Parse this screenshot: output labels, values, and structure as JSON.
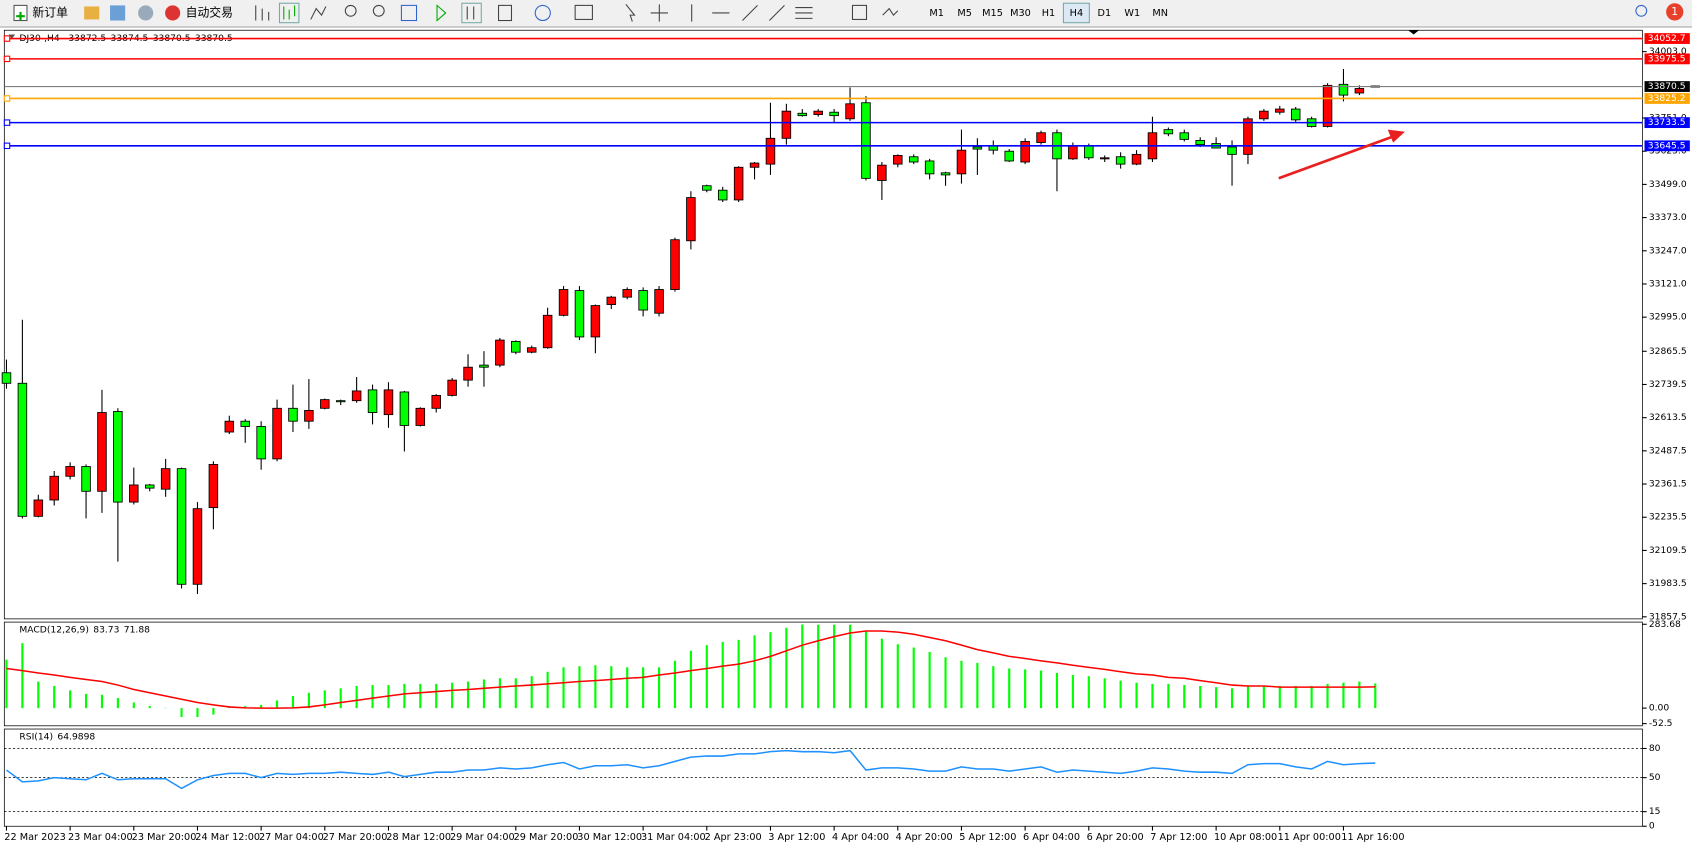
{
  "toolbar": {
    "new_order": "新订单",
    "auto_trading": "自动交易",
    "timeframes": [
      "M1",
      "M5",
      "M15",
      "M30",
      "H1",
      "H4",
      "D1",
      "W1",
      "MN"
    ],
    "active_timeframe": "H4",
    "notifications": 1
  },
  "chart_data": [
    {
      "type": "candlestick",
      "title": "DJ30-,H4",
      "categories": [
        "22 Mar 2023",
        null,
        null,
        null,
        "23 Mar 04:00",
        null,
        null,
        null,
        "23 Mar 20:00",
        null,
        null,
        null,
        "24 Mar 12:00",
        null,
        null,
        null,
        "27 Mar 04:00",
        null,
        null,
        null,
        "27 Mar 20:00",
        null,
        null,
        null,
        "28 Mar 12:00",
        null,
        null,
        null,
        "29 Mar 04:00",
        null,
        null,
        null,
        "29 Mar 20:00",
        null,
        null,
        null,
        "30 Mar 12:00",
        null,
        null,
        null,
        "31 Mar 04:00",
        null,
        null,
        null,
        "2 Apr 23:00",
        null,
        null,
        null,
        "3 Apr 12:00",
        null,
        null,
        null,
        "4 Apr 04:00",
        null,
        null,
        null,
        "4 Apr 20:00",
        null,
        null,
        null,
        "5 Apr 12:00",
        null,
        null,
        null,
        "6 Apr 04:00",
        null,
        null,
        null,
        "6 Apr 20:00",
        null,
        null,
        null,
        "7 Apr 12:00",
        null,
        null,
        null,
        "10 Apr 08:00",
        null,
        null,
        null,
        "11 Apr 00:00",
        null,
        null,
        null,
        "11 Apr 16:00",
        null,
        null
      ],
      "open": [
        32784,
        32744,
        32239,
        32301,
        32391,
        32428,
        32334,
        32637,
        32293,
        32358,
        32342,
        32420,
        31981,
        32272,
        32559,
        32600,
        32580,
        32457,
        32649,
        32600,
        32649,
        32678,
        32678,
        32719,
        32625,
        32711,
        32584,
        32649,
        32698,
        32756,
        32813,
        32813,
        32903,
        32862,
        32879,
        33002,
        33096,
        32920,
        33043,
        33071,
        33096,
        33010,
        33100,
        33285,
        33494,
        33477,
        33440,
        33564,
        33576,
        33674,
        33769,
        33764,
        33773,
        33748,
        33809,
        33514,
        33576,
        33604,
        33588,
        33543,
        33539,
        33641,
        33646,
        33625,
        33584,
        33658,
        33695,
        33596,
        33646,
        33596,
        33604,
        33576,
        33596,
        33707,
        33695,
        33666,
        33654,
        33641,
        33613,
        33748,
        33773,
        33785,
        33748,
        33719,
        33879,
        33846,
        33872.5
      ],
      "high": [
        32834,
        32985,
        32321,
        32411,
        32444,
        32436,
        32719,
        32649,
        32424,
        32362,
        32457,
        32424,
        32293,
        32448,
        32621,
        32608,
        32600,
        32682,
        32739,
        32760,
        32686,
        32682,
        32768,
        32739,
        32748,
        32715,
        32653,
        32703,
        32764,
        32854,
        32866,
        32916,
        32907,
        32887,
        33031,
        33113,
        33113,
        33043,
        33076,
        33108,
        33108,
        33113,
        33297,
        33473,
        33498,
        33490,
        33568,
        33584,
        33809,
        33805,
        33785,
        33785,
        33785,
        33867,
        33834,
        33584,
        33613,
        33613,
        33596,
        33547,
        33707,
        33674,
        33666,
        33633,
        33674,
        33703,
        33707,
        33658,
        33654,
        33609,
        33621,
        33629,
        33756,
        33715,
        33707,
        33678,
        33678,
        33666,
        33756,
        33785,
        33797,
        33793,
        33756,
        33883,
        33937,
        33875,
        33874.5
      ],
      "low": [
        32723,
        32231,
        32235,
        32280,
        32379,
        32231,
        32252,
        32067,
        32284,
        32334,
        32313,
        31965,
        31944,
        32190,
        32551,
        32518,
        32416,
        32448,
        32559,
        32571,
        32645,
        32661,
        32670,
        32588,
        32575,
        32485,
        32580,
        32633,
        32694,
        32731,
        32731,
        32805,
        32854,
        32858,
        32875,
        32998,
        32908,
        32858,
        33026,
        33063,
        32998,
        32998,
        33092,
        33252,
        33469,
        33432,
        33432,
        33518,
        33535,
        33650,
        33756,
        33756,
        33736,
        33740,
        33514,
        33440,
        33564,
        33576,
        33518,
        33494,
        33502,
        33535,
        33613,
        33584,
        33576,
        33650,
        33473,
        33592,
        33592,
        33584,
        33559,
        33572,
        33584,
        33682,
        33662,
        33641,
        33637,
        33494,
        33576,
        33740,
        33764,
        33736,
        33715,
        33715,
        33814,
        33838,
        33870.5
      ],
      "close": [
        32744,
        32239,
        32301,
        32391,
        32428,
        32334,
        32633,
        32293,
        32358,
        32346,
        32420,
        31981,
        32268,
        32436,
        32600,
        32580,
        32457,
        32649,
        32600,
        32641,
        32682,
        32674,
        32715,
        32633,
        32719,
        32584,
        32649,
        32698,
        32756,
        32805,
        32805,
        32908,
        32862,
        32879,
        33002,
        33100,
        32920,
        33039,
        33071,
        33100,
        33022,
        33100,
        33289,
        33449,
        33477,
        33440,
        33564,
        33580,
        33674,
        33777,
        33760,
        33777,
        33760,
        33805,
        33522,
        33572,
        33609,
        33584,
        33539,
        33535,
        33629,
        33633,
        33629,
        33588,
        33662,
        33695,
        33596,
        33646,
        33600,
        33600,
        33576,
        33613,
        33695,
        33691,
        33670,
        33650,
        33637,
        33613,
        33748,
        33777,
        33785,
        33744,
        33719,
        33875,
        33838,
        33863,
        33870.5
      ],
      "up_color": "#ff0000",
      "down_color": "#00ff00",
      "bid_color": "#808080",
      "levels": [
        {
          "value": 34052.7,
          "color": "#ff0000"
        },
        {
          "value": 33975.5,
          "color": "#ff0000"
        },
        {
          "value": 33825.2,
          "color": "#ffa500"
        },
        {
          "value": 33733.5,
          "color": "#0000ff"
        },
        {
          "value": 33645.5,
          "color": "#0000ff"
        }
      ],
      "ylim": [
        31849.7,
        34076
      ],
      "yticks": [
        31857.5,
        31983.5,
        32109.5,
        32235.5,
        32361.5,
        32487.5,
        32613.5,
        32739.5,
        32865.5,
        {
          "value": 32995,
          "label": "32995.0"
        },
        {
          "value": 33121,
          "label": "33121.0"
        },
        {
          "value": 33247,
          "label": "33247.0"
        },
        {
          "value": 33373,
          "label": "33373.0"
        },
        {
          "value": 33499,
          "label": "33499.0"
        },
        {
          "value": 33625,
          "label": "33625.0"
        },
        {
          "value": 33751,
          "label": "33751.0"
        },
        {
          "value": 34003,
          "label": "34003.0"
        }
      ]
    },
    {
      "type": "macd",
      "title": "MACD(12,26,9)",
      "histogram": [
        164,
        220,
        90,
        75,
        60,
        48,
        45,
        34,
        19,
        7,
        1,
        -30,
        -30,
        -22,
        4,
        7,
        11,
        26,
        41,
        52,
        60,
        67,
        75,
        78,
        78,
        82,
        82,
        82,
        86,
        90,
        97,
        101,
        101,
        108,
        123,
        138,
        142,
        145,
        142,
        138,
        138,
        138,
        160,
        194,
        213,
        224,
        231,
        246,
        257,
        272,
        283,
        282,
        282,
        282,
        261,
        235,
        216,
        205,
        190,
        172,
        160,
        153,
        142,
        134,
        131,
        127,
        119,
        112,
        108,
        101,
        93,
        86,
        82,
        82,
        78,
        75,
        71,
        67,
        75,
        75,
        75,
        75,
        75,
        82,
        86,
        90,
        83.73
      ],
      "signal": [
        134,
        127,
        119,
        112,
        104,
        97,
        90,
        78,
        63,
        52,
        41,
        30,
        19,
        11,
        4,
        1,
        0,
        0,
        1,
        4,
        11,
        19,
        26,
        34,
        41,
        48,
        52,
        56,
        60,
        63,
        67,
        71,
        75,
        78,
        82,
        86,
        90,
        93,
        97,
        101,
        104,
        112,
        119,
        127,
        134,
        142,
        149,
        160,
        175,
        194,
        213,
        228,
        242,
        254,
        261,
        261,
        257,
        250,
        239,
        228,
        213,
        198,
        187,
        175,
        168,
        160,
        153,
        145,
        138,
        131,
        123,
        116,
        112,
        104,
        101,
        93,
        86,
        78,
        75,
        75,
        71,
        71,
        71,
        71,
        71,
        71,
        71.88
      ],
      "histogram_color": "#00ff00",
      "signal_color": "#ff0000",
      "ylim": [
        -52.5,
        283.68
      ],
      "yticks": [
        -52.5,
        {
          "value": 0,
          "label": "0.00"
        },
        283.68
      ]
    },
    {
      "type": "rsi",
      "title": "RSI(14)",
      "values": [
        57.8,
        45.6,
        46.7,
        50,
        48.9,
        47.8,
        54.4,
        47.8,
        48.9,
        48.9,
        48.9,
        38.9,
        47.8,
        52.2,
        54.4,
        54.4,
        50,
        54.4,
        53.3,
        54.4,
        54.4,
        55.6,
        54.4,
        53.3,
        55.6,
        51.1,
        53.3,
        55.6,
        55.6,
        57.8,
        57.8,
        60,
        58.9,
        60,
        63.3,
        65.6,
        58.9,
        62.2,
        62.2,
        63.3,
        60,
        62.2,
        66.7,
        71.1,
        72.2,
        72.2,
        74.4,
        74.4,
        76.7,
        77.8,
        76.7,
        76.7,
        75.6,
        77.8,
        57.8,
        60,
        60,
        58.9,
        56.7,
        56.7,
        61.1,
        58.9,
        58.9,
        56.7,
        58.9,
        61.1,
        55.6,
        57.8,
        56.7,
        55.6,
        54.4,
        56.7,
        60,
        58.9,
        56.7,
        55.6,
        55.6,
        54.4,
        63.3,
        64.4,
        64.4,
        61.1,
        58.9,
        66.7,
        63.3,
        64.4,
        64.9898
      ],
      "color": "#1e90ff",
      "ylim": [
        0,
        100
      ],
      "yticks": [
        0,
        15,
        50,
        80
      ],
      "grid": "dashed"
    }
  ]
}
